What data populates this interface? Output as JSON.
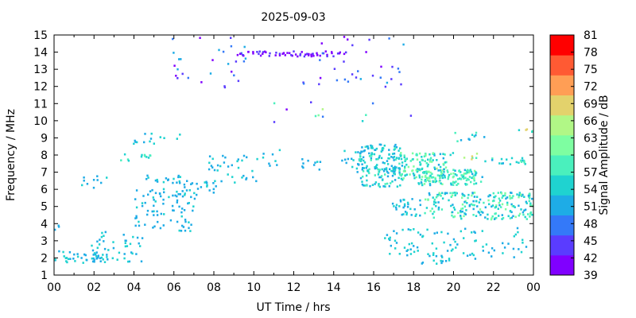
{
  "chart_data": {
    "type": "scatter",
    "title": "2025-09-03",
    "xlabel": "UT Time / hrs",
    "ylabel": "Frequency / MHz",
    "xlim": [
      0,
      24
    ],
    "ylim": [
      1,
      15
    ],
    "xticks": [
      "00",
      "02",
      "04",
      "06",
      "08",
      "10",
      "12",
      "14",
      "16",
      "18",
      "20",
      "22",
      "00"
    ],
    "yticks": [
      "1",
      "2",
      "3",
      "4",
      "5",
      "6",
      "7",
      "8",
      "9",
      "10",
      "11",
      "12",
      "13",
      "14",
      "15"
    ],
    "colorbar": {
      "label": "Signal Amplitude / dB",
      "range": [
        39,
        81
      ],
      "ticks": [
        "39",
        "42",
        "45",
        "48",
        "51",
        "54",
        "57",
        "60",
        "63",
        "66",
        "69",
        "72",
        "75",
        "78",
        "81"
      ],
      "colors": [
        "#8000ff",
        "#5a3cff",
        "#3479f8",
        "#1eace6",
        "#1fd3d0",
        "#4af0bd",
        "#7efea1",
        "#b1f786",
        "#e3d26c",
        "#ff9e55",
        "#ff5a33",
        "#ff0000"
      ]
    },
    "grid": false,
    "clusters": [
      {
        "x": [
          0.0,
          2.4
        ],
        "y": [
          1.7,
          2.5
        ],
        "amp": [
          50,
          55
        ],
        "n": 40
      },
      {
        "x": [
          0.0,
          0.3
        ],
        "y": [
          3.6,
          4.0
        ],
        "amp": [
          50,
          54
        ],
        "n": 3
      },
      {
        "x": [
          1.5,
          4.4
        ],
        "y": [
          1.8,
          3.6
        ],
        "amp": [
          50,
          56
        ],
        "n": 45
      },
      {
        "x": [
          1.3,
          2.6
        ],
        "y": [
          6.1,
          6.9
        ],
        "amp": [
          50,
          55
        ],
        "n": 10
      },
      {
        "x": [
          3.3,
          4.8
        ],
        "y": [
          7.7,
          8.2
        ],
        "amp": [
          52,
          60
        ],
        "n": 12
      },
      {
        "x": [
          3.8,
          6.3
        ],
        "y": [
          8.7,
          9.4
        ],
        "amp": [
          50,
          56
        ],
        "n": 14
      },
      {
        "x": [
          4.0,
          7.0
        ],
        "y": [
          3.6,
          6.1
        ],
        "amp": [
          50,
          54
        ],
        "n": 80
      },
      {
        "x": [
          4.4,
          6.4
        ],
        "y": [
          6.4,
          6.9
        ],
        "amp": [
          50,
          54
        ],
        "n": 18
      },
      {
        "x": [
          6.0,
          8.2
        ],
        "y": [
          5.7,
          6.7
        ],
        "amp": [
          50,
          54
        ],
        "n": 24
      },
      {
        "x": [
          7.6,
          10.3
        ],
        "y": [
          6.4,
          8.2
        ],
        "amp": [
          50,
          56
        ],
        "n": 35
      },
      {
        "x": [
          10.4,
          11.5
        ],
        "y": [
          7.2,
          8.4
        ],
        "amp": [
          50,
          54
        ],
        "n": 8
      },
      {
        "x": [
          12.3,
          13.4
        ],
        "y": [
          7.2,
          7.9
        ],
        "amp": [
          50,
          54
        ],
        "n": 10
      },
      {
        "x": [
          14.2,
          15.4
        ],
        "y": [
          7.0,
          8.3
        ],
        "amp": [
          50,
          54
        ],
        "n": 16
      },
      {
        "x": [
          15.2,
          17.4
        ],
        "y": [
          6.2,
          8.7
        ],
        "amp": [
          50,
          58
        ],
        "n": 170
      },
      {
        "x": [
          17.2,
          19.6
        ],
        "y": [
          6.7,
          8.2
        ],
        "amp": [
          52,
          64
        ],
        "n": 120
      },
      {
        "x": [
          18.2,
          21.4
        ],
        "y": [
          6.3,
          7.2
        ],
        "amp": [
          52,
          62
        ],
        "n": 120
      },
      {
        "x": [
          18.5,
          24.0
        ],
        "y": [
          4.3,
          5.9
        ],
        "amp": [
          50,
          62
        ],
        "n": 220
      },
      {
        "x": [
          16.8,
          18.5
        ],
        "y": [
          4.5,
          5.5
        ],
        "amp": [
          50,
          55
        ],
        "n": 30
      },
      {
        "x": [
          21.5,
          24.0
        ],
        "y": [
          7.5,
          7.9
        ],
        "amp": [
          52,
          58
        ],
        "n": 22
      },
      {
        "x": [
          20.0,
          21.6
        ],
        "y": [
          8.8,
          9.4
        ],
        "amp": [
          50,
          60
        ],
        "n": 10
      },
      {
        "x": [
          19.8,
          21.2
        ],
        "y": [
          7.8,
          8.2
        ],
        "amp": [
          55,
          70
        ],
        "n": 8
      },
      {
        "x": [
          23.2,
          24.0
        ],
        "y": [
          9.4,
          9.8
        ],
        "amp": [
          52,
          70
        ],
        "n": 5
      },
      {
        "x": [
          16.5,
          24.0
        ],
        "y": [
          2.0,
          3.8
        ],
        "amp": [
          50,
          56
        ],
        "n": 90
      },
      {
        "x": [
          18.2,
          19.8
        ],
        "y": [
          1.7,
          2.4
        ],
        "amp": [
          50,
          56
        ],
        "n": 14
      },
      {
        "x": [
          5.5,
          9.6
        ],
        "y": [
          12.0,
          14.9
        ],
        "amp": [
          40,
          52
        ],
        "n": 30
      },
      {
        "x": [
          9.0,
          14.6
        ],
        "y": [
          13.8,
          14.1
        ],
        "amp": [
          39,
          44
        ],
        "n": 60
      },
      {
        "x": [
          12.2,
          17.6
        ],
        "y": [
          12.0,
          15.0
        ],
        "amp": [
          39,
          50
        ],
        "n": 35
      },
      {
        "x": [
          10.6,
          18.2
        ],
        "y": [
          9.8,
          11.3
        ],
        "amp": [
          42,
          66
        ],
        "n": 12
      }
    ]
  }
}
